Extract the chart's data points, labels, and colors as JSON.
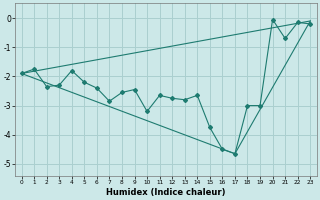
{
  "xlabel": "Humidex (Indice chaleur)",
  "bg_color": "#cce8e8",
  "line_color": "#1e7b70",
  "grid_color": "#aacfcf",
  "xlim": [
    -0.5,
    23.5
  ],
  "ylim": [
    -5.4,
    0.5
  ],
  "yticks": [
    0,
    -1,
    -2,
    -3,
    -4,
    -5
  ],
  "xticks": [
    0,
    1,
    2,
    3,
    4,
    5,
    6,
    7,
    8,
    9,
    10,
    11,
    12,
    13,
    14,
    15,
    16,
    17,
    18,
    19,
    20,
    21,
    22,
    23
  ],
  "main_series": {
    "x": [
      0,
      1,
      2,
      3,
      4,
      5,
      6,
      7,
      8,
      9,
      10,
      11,
      12,
      13,
      14,
      15,
      16,
      17,
      18,
      19,
      20,
      21,
      22,
      23
    ],
    "y": [
      -1.9,
      -1.75,
      -2.35,
      -2.3,
      -1.8,
      -2.2,
      -2.4,
      -2.85,
      -2.55,
      -2.45,
      -3.2,
      -2.65,
      -2.75,
      -2.8,
      -2.65,
      -3.75,
      -4.5,
      -4.65,
      -3.0,
      -3.0,
      -0.05,
      -0.7,
      -0.15,
      -0.2
    ]
  },
  "upper_envelope": {
    "x": [
      0,
      23
    ],
    "y": [
      -1.9,
      -0.1
    ]
  },
  "lower_envelope": {
    "x": [
      0,
      17,
      23
    ],
    "y": [
      -1.9,
      -4.65,
      -0.1
    ]
  }
}
